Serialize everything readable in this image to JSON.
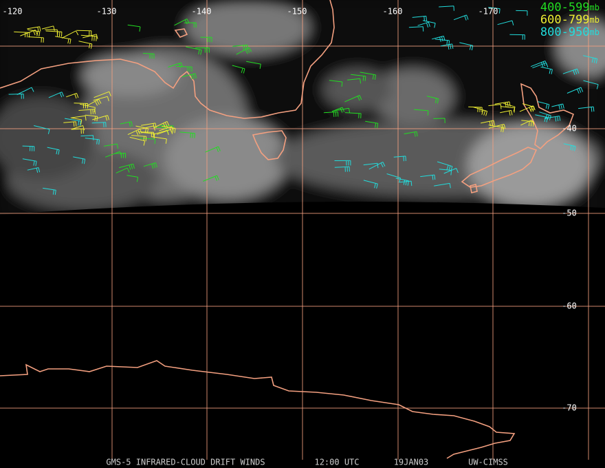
{
  "map": {
    "lon_labels": [
      "-120",
      "-130",
      "-140",
      "-150",
      "-160",
      "-170"
    ],
    "lat_labels": [
      "-40",
      "-50",
      "-60",
      "-70"
    ],
    "legend": [
      {
        "range": "400-599",
        "unit": "mb",
        "color": "#22dd22"
      },
      {
        "range": "600-799",
        "unit": "mb",
        "color": "#eeee33"
      },
      {
        "range": "800-950",
        "unit": "mb",
        "color": "#22dddd"
      }
    ],
    "footer": {
      "product": "GMS-5 INFRARED-CLOUD DRIFT WINDS",
      "time": "12:00 UTC",
      "date": "19JAN03",
      "source": "UW-CIMSS"
    }
  }
}
